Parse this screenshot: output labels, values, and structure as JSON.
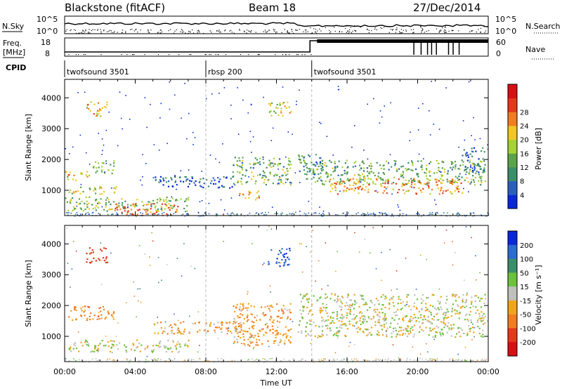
{
  "header": {
    "station": "Blackstone (fitACF)",
    "beam": "Beam 18",
    "date": "27/Dec/2014"
  },
  "aux_panels": {
    "nsky_label": "N.Sky",
    "nsky_ticks": [
      "10^5",
      "10^0"
    ],
    "nsearch_label": "N.Search",
    "nsearch_ticks": [
      "10^5",
      "10^0"
    ],
    "freq_label_1": "Freq.",
    "freq_label_2": "[MHz]",
    "freq_ticks": [
      "18",
      "8"
    ],
    "nave_label": "Nave",
    "nave_ticks": [
      "60",
      "0"
    ],
    "cpid_label": "CPID",
    "cpid_segments": [
      {
        "name": "twofsound 3501",
        "start_h": 0,
        "end_h": 8
      },
      {
        "name": "rbsp 200",
        "start_h": 8,
        "end_h": 14
      },
      {
        "name": "twofsound 3501",
        "start_h": 14,
        "end_h": 24
      }
    ]
  },
  "chart_data": [
    {
      "type": "heatmap",
      "quantity": "Power",
      "ylabel": "Slant Range [km]",
      "xlim": [
        0,
        24
      ],
      "ylim": [
        180,
        4600
      ],
      "yticks": [
        1000,
        2000,
        3000,
        4000
      ],
      "colorbar_label": "Power [dB]",
      "colorbar_levels": [
        0,
        4,
        8,
        12,
        16,
        20,
        24,
        28,
        30
      ],
      "colorbar_ticks": [
        "4",
        "8",
        "12",
        "16",
        "20",
        "24",
        "28"
      ],
      "colorbar_colors": [
        "#0a28d8",
        "#2a5fc0",
        "#3c8e6a",
        "#5ba34a",
        "#a6d235",
        "#f2c624",
        "#f47c1e",
        "#e33a1a",
        "#d80f14"
      ],
      "echo_regions": [
        {
          "t0": 1.2,
          "t1": 2.4,
          "r0": 3400,
          "r1": 3900,
          "value": 22
        },
        {
          "t0": 0.0,
          "t1": 1.5,
          "r0": 1350,
          "r1": 1650,
          "value": 22
        },
        {
          "t0": 1.5,
          "t1": 2.8,
          "r0": 1550,
          "r1": 2000,
          "value": 14
        },
        {
          "t0": 0.2,
          "t1": 3.0,
          "r0": 900,
          "r1": 1150,
          "value": 20
        },
        {
          "t0": 0.0,
          "t1": 7.0,
          "r0": 350,
          "r1": 800,
          "value": 16
        },
        {
          "t0": 2.8,
          "t1": 6.5,
          "r0": 200,
          "r1": 600,
          "value": 28
        },
        {
          "t0": 5.0,
          "t1": 9.5,
          "r0": 1100,
          "r1": 1500,
          "value": 6
        },
        {
          "t0": 9.5,
          "t1": 12.8,
          "r0": 1200,
          "r1": 2100,
          "value": 14
        },
        {
          "t0": 9.8,
          "t1": 11.0,
          "r0": 700,
          "r1": 1000,
          "value": 24
        },
        {
          "t0": 11.5,
          "t1": 12.8,
          "r0": 3400,
          "r1": 3900,
          "value": 18
        },
        {
          "t0": 13.2,
          "t1": 14.5,
          "r0": 1300,
          "r1": 2200,
          "value": 10
        },
        {
          "t0": 14.0,
          "t1": 23.8,
          "r0": 1200,
          "r1": 2000,
          "value": 14
        },
        {
          "t0": 15.0,
          "t1": 22.5,
          "r0": 900,
          "r1": 1400,
          "value": 26
        },
        {
          "t0": 22.5,
          "t1": 23.8,
          "r0": 1600,
          "r1": 2400,
          "value": 6
        }
      ]
    },
    {
      "type": "heatmap",
      "quantity": "Velocity",
      "ylabel": "Slant Range [km]",
      "xlabel": "Time UT",
      "xlim": [
        0,
        24
      ],
      "ylim": [
        180,
        4600
      ],
      "xticks": [
        "00:00",
        "04:00",
        "08:00",
        "12:00",
        "16:00",
        "20:00",
        "00:00"
      ],
      "yticks": [
        1000,
        2000,
        3000,
        4000
      ],
      "colorbar_label": "Velocity [m s⁻¹]",
      "colorbar_ticks": [
        "200",
        "100",
        "50",
        "15",
        "-15",
        "-50",
        "-100",
        "-200"
      ],
      "colorbar_colors": [
        "#0a28d8",
        "#2b6bd4",
        "#3c8e6a",
        "#6cc23c",
        "#c0c0bc",
        "#f2a51c",
        "#f47c1e",
        "#e33a1a",
        "#d80f14"
      ],
      "echo_regions": [
        {
          "t0": 1.2,
          "t1": 2.4,
          "r0": 3400,
          "r1": 3900,
          "value": -150
        },
        {
          "t0": 0.2,
          "t1": 2.8,
          "r0": 1550,
          "r1": 2000,
          "value": -60
        },
        {
          "t0": 0.2,
          "t1": 7.0,
          "r0": 500,
          "r1": 900,
          "value": 0
        },
        {
          "t0": 5.0,
          "t1": 10.0,
          "r0": 1100,
          "r1": 1500,
          "value": -40
        },
        {
          "t0": 9.5,
          "t1": 12.8,
          "r0": 700,
          "r1": 2100,
          "value": -45
        },
        {
          "t0": 11.5,
          "t1": 12.8,
          "r0": 3300,
          "r1": 3900,
          "value": 180
        },
        {
          "t0": 13.2,
          "t1": 23.8,
          "r0": 1000,
          "r1": 2400,
          "value": 0
        }
      ]
    }
  ]
}
